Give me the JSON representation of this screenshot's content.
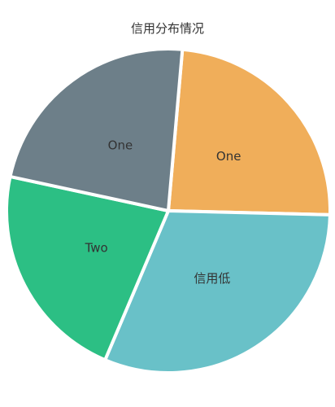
{
  "chart_data": {
    "type": "pie",
    "title": "信用分布情况",
    "slices": [
      {
        "label": "One",
        "value": 24,
        "color": "#f0ae5a"
      },
      {
        "label": "信用低",
        "value": 31,
        "color": "#69c1c8"
      },
      {
        "label": "Two",
        "value": 22,
        "color": "#2cbf84"
      },
      {
        "label": "One",
        "value": 23,
        "color": "#6d7f89"
      }
    ],
    "legend": "none"
  }
}
